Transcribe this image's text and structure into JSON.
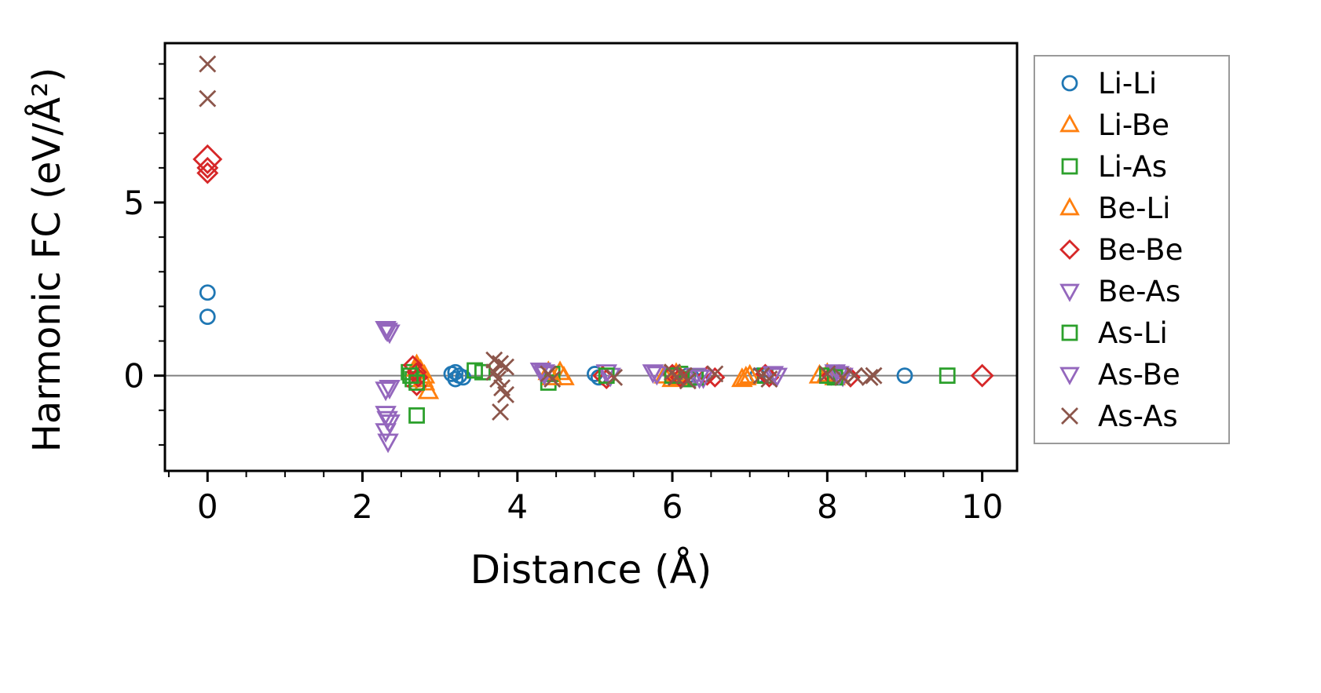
{
  "chart_data": {
    "type": "scatter",
    "title": "",
    "xlabel": "Distance (Å)",
    "ylabel": "Harmonic FC (eV/Å²)",
    "xlim": [
      -0.55,
      10.45
    ],
    "ylim": [
      -2.75,
      9.6
    ],
    "xticks": [
      0,
      2,
      4,
      6,
      8,
      10
    ],
    "yticks": [
      0,
      5
    ],
    "xticks_minor": [
      -0.5,
      0.5,
      1,
      1.5,
      2.5,
      3,
      3.5,
      4.5,
      5,
      5.5,
      6.5,
      7,
      7.5,
      8.5,
      9,
      9.5
    ],
    "yticks_minor": [
      -2,
      -1,
      1,
      2,
      3,
      4,
      6,
      7,
      8,
      9
    ],
    "grid": false,
    "zero_line": {
      "y": 0,
      "color": "#808080"
    },
    "legend_position": "outside-right",
    "axis_color": "#000000",
    "series": [
      {
        "name": "Li-Li",
        "marker": "circle",
        "color": "#1f77b4",
        "size": 9,
        "points": [
          [
            0,
            2.4
          ],
          [
            0,
            1.7
          ],
          [
            3.15,
            0.05
          ],
          [
            3.2,
            0.1
          ],
          [
            3.25,
            0.0
          ],
          [
            3.2,
            -0.1
          ],
          [
            3.3,
            -0.05
          ],
          [
            5.0,
            0.05
          ],
          [
            5.05,
            -0.05
          ],
          [
            6.2,
            0.0
          ],
          [
            6.25,
            -0.05
          ],
          [
            7.1,
            0.0
          ],
          [
            9.0,
            0.0
          ]
        ]
      },
      {
        "name": "Li-Be",
        "marker": "triangle-up",
        "color": "#ff7f0e",
        "size": 12,
        "points": [
          [
            2.7,
            0.3
          ],
          [
            2.75,
            0.15
          ],
          [
            2.8,
            0.0
          ],
          [
            2.8,
            -0.2
          ],
          [
            2.85,
            -0.45
          ],
          [
            4.55,
            0.1
          ],
          [
            4.6,
            -0.05
          ],
          [
            5.9,
            0.0
          ],
          [
            6.0,
            -0.1
          ],
          [
            6.9,
            -0.1
          ],
          [
            7.0,
            0.0
          ],
          [
            7.9,
            0.0
          ],
          [
            8.1,
            -0.05
          ]
        ]
      },
      {
        "name": "Li-As",
        "marker": "square",
        "color": "#2ca02c",
        "size": 9,
        "points": [
          [
            2.6,
            0.1
          ],
          [
            2.65,
            -0.1
          ],
          [
            2.7,
            -1.15
          ],
          [
            3.45,
            0.15
          ],
          [
            3.55,
            0.1
          ],
          [
            4.4,
            -0.2
          ],
          [
            4.45,
            0.05
          ],
          [
            6.1,
            0.05
          ],
          [
            6.2,
            -0.1
          ],
          [
            7.2,
            0.0
          ],
          [
            9.55,
            0.0
          ]
        ]
      },
      {
        "name": "Be-Li",
        "marker": "triangle-up",
        "color": "#ff7f0e",
        "size": 12,
        "points": [
          [
            2.7,
            0.2
          ],
          [
            2.78,
            -0.1
          ],
          [
            4.4,
            0.1
          ],
          [
            4.45,
            -0.05
          ],
          [
            6.05,
            0.05
          ],
          [
            6.1,
            -0.05
          ],
          [
            6.95,
            -0.05
          ],
          [
            8.0,
            0.05
          ],
          [
            8.15,
            0.0
          ]
        ]
      },
      {
        "name": "Be-Be",
        "marker": "diamond",
        "color": "#d62728",
        "size": 11,
        "points": [
          [
            0,
            6.25,
            17
          ],
          [
            0,
            6.0,
            12
          ],
          [
            0,
            5.85,
            12
          ],
          [
            2.65,
            0.3
          ],
          [
            2.7,
            0.1
          ],
          [
            2.72,
            -0.05
          ],
          [
            2.7,
            -0.3
          ],
          [
            5.1,
            0.0
          ],
          [
            5.15,
            -0.1
          ],
          [
            6.0,
            0.05
          ],
          [
            6.1,
            -0.05
          ],
          [
            6.45,
            0.0
          ],
          [
            6.55,
            -0.05
          ],
          [
            7.2,
            0.05
          ],
          [
            7.25,
            -0.05
          ],
          [
            8.05,
            0.0
          ],
          [
            8.3,
            -0.05
          ],
          [
            10.0,
            0.0,
            13
          ]
        ]
      },
      {
        "name": "Be-As",
        "marker": "triangle-down",
        "color": "#9467bd",
        "size": 12,
        "points": [
          [
            2.3,
            1.35
          ],
          [
            2.35,
            1.25
          ],
          [
            2.3,
            -0.4
          ],
          [
            2.3,
            -1.1
          ],
          [
            2.35,
            -1.35
          ],
          [
            2.3,
            -1.6
          ],
          [
            2.33,
            -1.9
          ],
          [
            4.3,
            0.15
          ],
          [
            4.35,
            0.05
          ],
          [
            5.15,
            0.1
          ],
          [
            5.2,
            0.0
          ],
          [
            5.75,
            0.1
          ],
          [
            6.3,
            0.0
          ],
          [
            6.4,
            -0.05
          ],
          [
            7.3,
            0.05
          ],
          [
            8.1,
            0.1
          ],
          [
            8.2,
            0.0
          ]
        ]
      },
      {
        "name": "As-Li",
        "marker": "square",
        "color": "#2ca02c",
        "size": 9,
        "points": [
          [
            2.62,
            0.0
          ],
          [
            2.7,
            -0.2
          ],
          [
            5.15,
            0.0
          ],
          [
            6.0,
            0.0
          ],
          [
            6.3,
            -0.05
          ],
          [
            8.0,
            0.0
          ],
          [
            8.1,
            -0.05
          ]
        ]
      },
      {
        "name": "As-Be",
        "marker": "triangle-down",
        "color": "#9467bd",
        "size": 12,
        "points": [
          [
            2.32,
            1.3
          ],
          [
            2.35,
            -0.35
          ],
          [
            2.32,
            -1.25
          ],
          [
            4.35,
            0.1
          ],
          [
            5.8,
            0.05
          ],
          [
            6.35,
            -0.05
          ],
          [
            7.35,
            0.0
          ],
          [
            8.15,
            0.05
          ]
        ]
      },
      {
        "name": "As-As",
        "marker": "x",
        "color": "#8c564b",
        "size": 10,
        "points": [
          [
            0,
            9.0
          ],
          [
            0,
            8.0
          ],
          [
            3.7,
            0.45
          ],
          [
            3.78,
            0.35
          ],
          [
            3.85,
            0.25
          ],
          [
            3.7,
            0.1
          ],
          [
            3.75,
            -0.1
          ],
          [
            3.8,
            -0.35
          ],
          [
            3.85,
            -0.55
          ],
          [
            3.78,
            -1.05
          ],
          [
            4.4,
            0.05
          ],
          [
            4.45,
            -0.1
          ],
          [
            5.25,
            -0.05
          ],
          [
            6.0,
            0.1
          ],
          [
            6.05,
            -0.05
          ],
          [
            6.15,
            0.0
          ],
          [
            6.2,
            -0.15
          ],
          [
            6.55,
            0.05
          ],
          [
            7.15,
            0.0
          ],
          [
            7.25,
            -0.1
          ],
          [
            8.0,
            0.05
          ],
          [
            8.2,
            -0.05
          ],
          [
            8.35,
            0.0
          ],
          [
            8.55,
            -0.05
          ],
          [
            8.6,
            0.0
          ]
        ]
      }
    ]
  }
}
